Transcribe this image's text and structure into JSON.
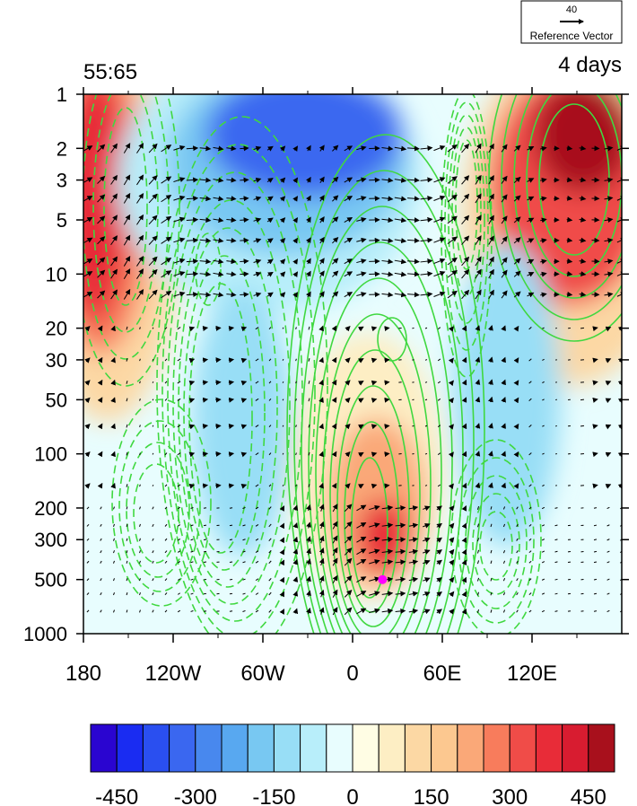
{
  "chart_data": {
    "type": "heatmap",
    "title_left": "55:65",
    "title_right": "4 days",
    "x_ticks": [
      {
        "value": -180,
        "label": "180"
      },
      {
        "value": -120,
        "label": "120W"
      },
      {
        "value": -60,
        "label": "60W"
      },
      {
        "value": 0,
        "label": "0"
      },
      {
        "value": 60,
        "label": "60E"
      },
      {
        "value": 120,
        "label": "120E"
      }
    ],
    "xlim": [
      -180,
      180
    ],
    "y_ticks": [
      {
        "value": 1,
        "label": "1"
      },
      {
        "value": 2,
        "label": "2"
      },
      {
        "value": 3,
        "label": "3"
      },
      {
        "value": 5,
        "label": "5"
      },
      {
        "value": 10,
        "label": "10"
      },
      {
        "value": 20,
        "label": "20"
      },
      {
        "value": 30,
        "label": "30"
      },
      {
        "value": 50,
        "label": "50"
      },
      {
        "value": 100,
        "label": "100"
      },
      {
        "value": 200,
        "label": "200"
      },
      {
        "value": 300,
        "label": "300"
      },
      {
        "value": 500,
        "label": "500"
      },
      {
        "value": 1000,
        "label": "1000"
      }
    ],
    "ylim": [
      1000,
      1
    ],
    "y_scale": "log",
    "grid": false,
    "colorbar": {
      "levels": [
        -500,
        -450,
        -400,
        -350,
        -300,
        -250,
        -200,
        -150,
        -100,
        -50,
        0,
        50,
        100,
        150,
        200,
        250,
        300,
        350,
        400,
        450,
        500
      ],
      "labels": [
        {
          "value": -450,
          "label": "-450"
        },
        {
          "value": -300,
          "label": "-300"
        },
        {
          "value": -150,
          "label": "-150"
        },
        {
          "value": 0,
          "label": "0"
        },
        {
          "value": 150,
          "label": "150"
        },
        {
          "value": 300,
          "label": "300"
        },
        {
          "value": 450,
          "label": "450"
        }
      ],
      "colors": [
        "#2a05d0",
        "#1a2cf2",
        "#2a4ff0",
        "#3a67f0",
        "#4888ee",
        "#58a8f0",
        "#78c8f2",
        "#98def6",
        "#b8eefa",
        "#e8fdfe",
        "#fffde4",
        "#fdeec4",
        "#fcd8a4",
        "#fcc890",
        "#faa878",
        "#f87c5c",
        "#f04c48",
        "#e82c38",
        "#d81c30",
        "#a8101c"
      ],
      "placement": "bottom"
    },
    "reference_vector": {
      "value": "40",
      "label": "Reference Vector",
      "placement": "top-right"
    },
    "marker": {
      "x": 20,
      "y": 500,
      "color": "#ff00ff"
    },
    "contour_color": "#40d840",
    "colors": {
      "vector": "#000000",
      "frame": "#000000"
    }
  }
}
